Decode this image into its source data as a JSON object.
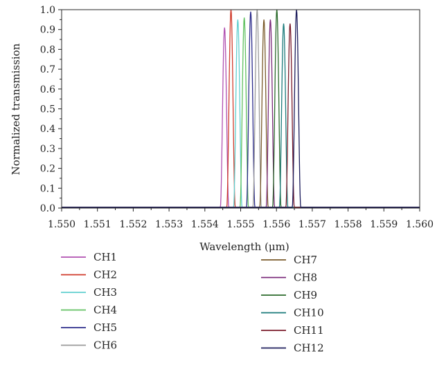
{
  "chart_data": {
    "type": "line",
    "title": "",
    "xlabel": "Wavelength (μm)",
    "ylabel": "Normalized transmission",
    "xlim": [
      1.55,
      1.56
    ],
    "ylim": [
      0.0,
      1.0
    ],
    "x_ticks": [
      "1.550",
      "1.551",
      "1.552",
      "1.553",
      "1.554",
      "1.555",
      "1.556",
      "1.557",
      "1.558",
      "1.559",
      "1.560"
    ],
    "y_ticks": [
      "0.0",
      "0.1",
      "0.2",
      "0.3",
      "0.4",
      "0.5",
      "0.6",
      "0.7",
      "0.8",
      "0.9",
      "1.0"
    ],
    "grid": false,
    "legend_position": "bottom",
    "series": [
      {
        "name": "CH1",
        "color": "#b04fb0",
        "peak_x": 1.55455,
        "peak_y": 0.91
      },
      {
        "name": "CH2",
        "color": "#d03a2a",
        "peak_x": 1.55473,
        "peak_y": 1.0
      },
      {
        "name": "CH3",
        "color": "#5fcfcf",
        "peak_x": 1.55492,
        "peak_y": 0.95
      },
      {
        "name": "CH4",
        "color": "#5fc05f",
        "peak_x": 1.5551,
        "peak_y": 0.96
      },
      {
        "name": "CH5",
        "color": "#2a2a8a",
        "peak_x": 1.55528,
        "peak_y": 0.99
      },
      {
        "name": "CH6",
        "color": "#9a9a9a",
        "peak_x": 1.55546,
        "peak_y": 1.0
      },
      {
        "name": "CH7",
        "color": "#7a5a2a",
        "peak_x": 1.55565,
        "peak_y": 0.95
      },
      {
        "name": "CH8",
        "color": "#7a2a7a",
        "peak_x": 1.55583,
        "peak_y": 0.95
      },
      {
        "name": "CH9",
        "color": "#2a6a2a",
        "peak_x": 1.55601,
        "peak_y": 1.0
      },
      {
        "name": "CH10",
        "color": "#1a7a7a",
        "peak_x": 1.5562,
        "peak_y": 0.93
      },
      {
        "name": "CH11",
        "color": "#7a1a2a",
        "peak_x": 1.55638,
        "peak_y": 0.93
      },
      {
        "name": "CH12",
        "color": "#1a1a5a",
        "peak_x": 1.55656,
        "peak_y": 1.0
      }
    ]
  }
}
